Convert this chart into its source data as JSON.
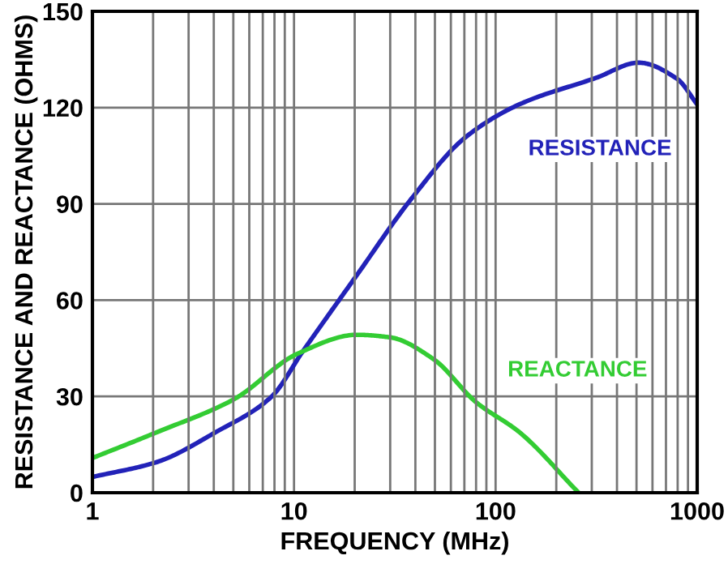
{
  "chart_data": {
    "type": "line",
    "xlabel": "FREQUENCY (MHz)",
    "ylabel": "RESISTANCE AND REACTANCE (OHMS)",
    "log": "x",
    "xlim": [
      1,
      1000
    ],
    "xticks": [
      1,
      10,
      100,
      1000
    ],
    "ylim": [
      0,
      150
    ],
    "yticks": [
      0,
      30,
      60,
      90,
      120,
      150
    ],
    "grid": true,
    "legend": false,
    "marker": "none",
    "line_style": "solid",
    "series": [
      {
        "name": "RESISTANCE",
        "color": "#2222b8",
        "x": [
          1,
          2.1,
          4.1,
          7.7,
          11.1,
          20.5,
          38,
          71,
          131,
          316,
          512,
          794,
          1000
        ],
        "values": [
          4.9,
          9.6,
          18.9,
          29.8,
          44.2,
          67.8,
          91.4,
          110.8,
          121,
          129.3,
          134,
          129,
          121
        ]
      },
      {
        "name": "REACTANCE",
        "color": "#33cc33",
        "x": [
          1,
          2.1,
          5,
          10.4,
          20.5,
          30,
          49,
          80,
          131,
          258
        ],
        "values": [
          10.8,
          18.9,
          29,
          43.3,
          49.2,
          48.4,
          41.7,
          28.2,
          18.9,
          0
        ]
      }
    ]
  }
}
